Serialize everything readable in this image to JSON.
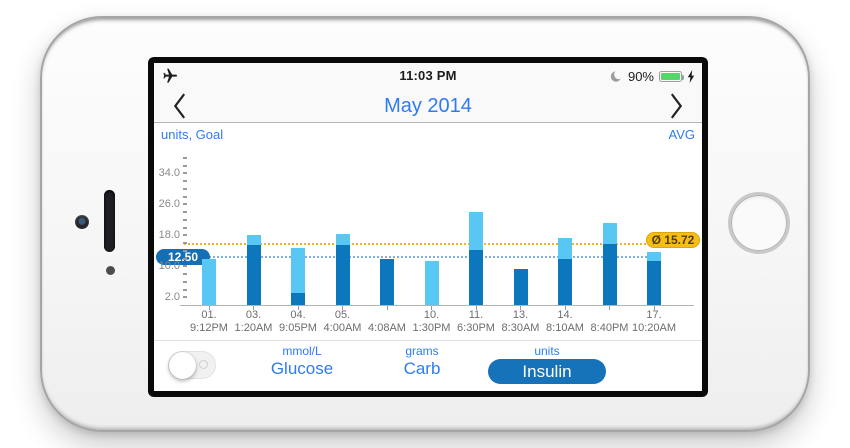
{
  "status_bar": {
    "airplane_icon": "airplane",
    "time": "11:03 PM",
    "moon_icon": "crescent-moon",
    "battery_percent": "90%",
    "charging_icon": "lightning-bolt"
  },
  "nav": {
    "prev_icon": "chevron-left",
    "next_icon": "chevron-right"
  },
  "badges": {
    "goal_text": "12.50",
    "avg_text": "Ø 15.72"
  },
  "bottom_bar": {
    "toggle_state": "off",
    "segments": [
      {
        "unit": "mmol/L",
        "label": "Glucose",
        "selected": false
      },
      {
        "unit": "grams",
        "label": "Carb",
        "selected": false
      },
      {
        "unit": "units",
        "label": "Insulin",
        "selected": true
      }
    ]
  },
  "colors": {
    "accent_blue": "#2e7cf0",
    "bar_light": "#59C7F4",
    "bar_dark": "#0D77BD",
    "goal_badge_bg": "#166FB5",
    "avg_badge_bg": "#F6BE14",
    "goal_line": "#85AEDC",
    "avg_line": "#F0B429",
    "pill_bg": "#1673BA",
    "battery_green": "#53D769"
  },
  "chart_data": {
    "type": "bar",
    "stacked": true,
    "title": "May 2014",
    "ylabel": "units, Goal",
    "avg_label": "AVG",
    "xlabel": "",
    "goal_value": 12.5,
    "avg_value": 15.72,
    "ylim": [
      0,
      38
    ],
    "y_major_ticks": [
      2,
      10,
      18,
      26,
      34
    ],
    "y_minor_step": 2,
    "grid": false,
    "legend_position": "none",
    "categories": [
      {
        "day": "01.",
        "time": "9:12PM"
      },
      {
        "day": "03.",
        "time": "1:20AM"
      },
      {
        "day": "04.",
        "time": "9:05PM"
      },
      {
        "day": "05.",
        "time": "4:00AM"
      },
      {
        "day": "",
        "time": "4:08AM"
      },
      {
        "day": "10.",
        "time": "1:30PM"
      },
      {
        "day": "11.",
        "time": "6:30PM"
      },
      {
        "day": "13.",
        "time": "8:30AM"
      },
      {
        "day": "14.",
        "time": "8:10AM"
      },
      {
        "day": "",
        "time": "8:40PM"
      },
      {
        "day": "17.",
        "time": "10:20AM"
      }
    ],
    "series": [
      {
        "name": "insulin-dark",
        "color": "#0D77BD",
        "values": [
          0,
          15.5,
          3.0,
          15.6,
          11.9,
          0,
          14.2,
          9.3,
          11.9,
          15.7,
          11.4
        ]
      },
      {
        "name": "insulin-light",
        "color": "#59C7F4",
        "values": [
          11.8,
          2.6,
          11.8,
          2.6,
          0,
          11.4,
          9.8,
          0,
          5.4,
          5.5,
          2.3
        ]
      }
    ]
  }
}
